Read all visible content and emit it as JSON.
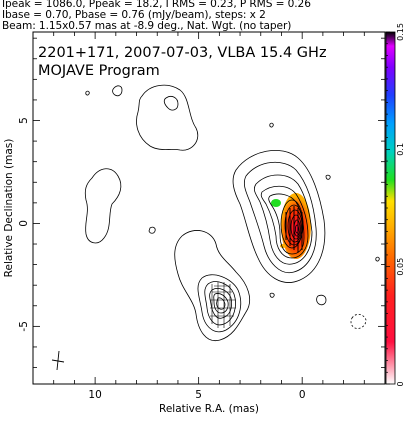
{
  "header": {
    "line1": "Ipeak = 1086.0, Ppeak = 18.2, I RMS = 0.23, P RMS = 0.26",
    "line2": "Ibase = 0.70, Pbase = 0.76 (mJy/beam), steps: x 2",
    "line3": "Beam: 1.15x0.57 mas at -8.9 deg., Nat. Wgt. (no taper)"
  },
  "chart_data": {
    "type": "heatmap",
    "title": "2201+171, 2007-07-03, VLBA 15.4 GHz",
    "subtitle": "MOJAVE Program",
    "xlabel": "Relative R.A. (mas)",
    "ylabel": "Relative Declination (mas)",
    "xlim": [
      13,
      -4
    ],
    "ylim": [
      -7.8,
      9.3
    ],
    "xticks": [
      10,
      5,
      0
    ],
    "xtick_labels": [
      "10",
      "5",
      "0"
    ],
    "yticks": [
      5,
      0,
      -5
    ],
    "ytick_labels": [
      "5",
      "0",
      "-5"
    ],
    "colorbar": {
      "range": [
        0,
        0.15
      ],
      "ticks": [
        0,
        0.05,
        0.1,
        0.15
      ],
      "tick_labels": [
        "0",
        "0.05",
        "0.1",
        "0.15"
      ]
    },
    "core": {
      "x": 0.0,
      "y": 0.0
    },
    "contour_levels": [
      0.7,
      1.4,
      2.8,
      5.6,
      11.2,
      22.4,
      44.8,
      89.6,
      179.2,
      358.4,
      716.8
    ]
  }
}
